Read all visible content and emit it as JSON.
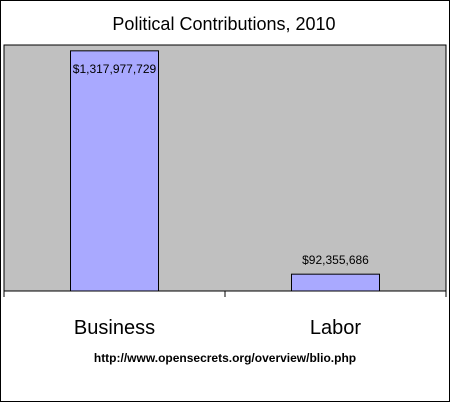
{
  "colors": {
    "plot_background": "#c0c0c0",
    "bar_fill": "#a9a9ff",
    "bar_stroke": "#000000"
  },
  "chart_data": {
    "type": "bar",
    "title": "Political Contributions, 2010",
    "categories": [
      "Business",
      "Labor"
    ],
    "values": [
      1317977729,
      92355686
    ],
    "data_labels": [
      "$1,317,977,729",
      "$92,355,686"
    ],
    "ylim": [
      0,
      1350000000
    ],
    "grid": false,
    "legend": "none",
    "xlabel": "",
    "ylabel": "",
    "source": "http://www.opensecrets.org/overview/blio.php"
  }
}
